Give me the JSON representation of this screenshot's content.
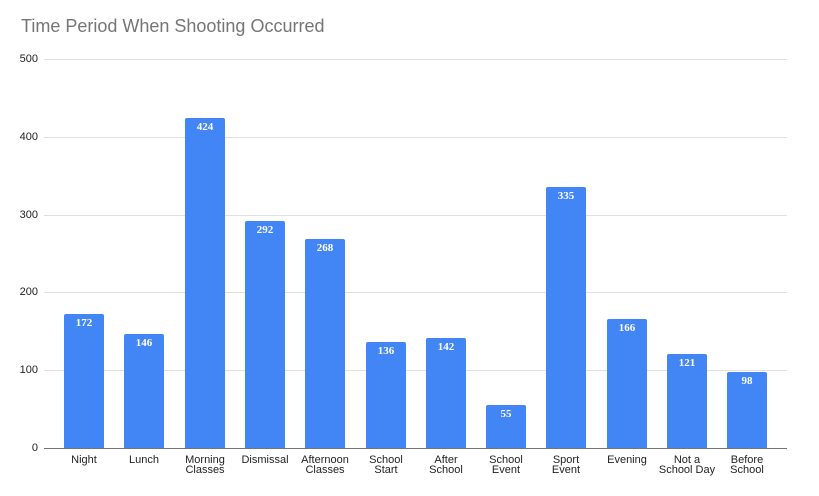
{
  "chart_data": {
    "type": "bar",
    "title": "Time Period When Shooting Occurred",
    "xlabel": "",
    "ylabel": "",
    "ylim": [
      0,
      500
    ],
    "yticks": [
      0,
      100,
      200,
      300,
      400,
      500
    ],
    "grid": true,
    "legend": "none",
    "bar_color": "#4285f4",
    "categories": [
      "Night",
      "Lunch",
      "Morning Classes",
      "Dismissal",
      "Afternoon Classes",
      "School Start",
      "After School",
      "School Event",
      "Sport Event",
      "Evening",
      "Not a School Day",
      "Before School"
    ],
    "category_display": [
      "Night",
      "Lunch",
      "Morning\nClasses",
      "Dismissal",
      "Afternoon\nClasses",
      "School\nStart",
      "After\nSchool",
      "School\nEvent",
      "Sport\nEvent",
      "Evening",
      "Not a\nSchool Day",
      "Before\nSchool"
    ],
    "values": [
      172,
      146,
      424,
      292,
      268,
      136,
      142,
      55,
      335,
      166,
      121,
      98
    ],
    "data_labels": [
      "172",
      "146",
      "424",
      "292",
      "268",
      "136",
      "142",
      "55",
      "335",
      "166",
      "121",
      "98"
    ]
  }
}
